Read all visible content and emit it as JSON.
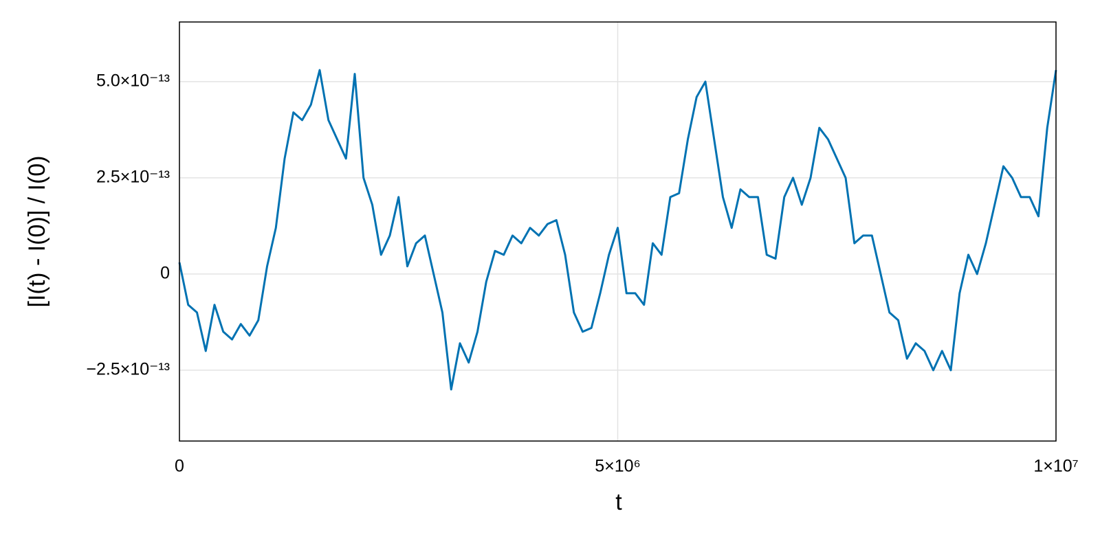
{
  "chart_data": {
    "type": "line",
    "xlabel": "t",
    "ylabel": "[I(t) - I(0)] / I(0)",
    "x": [
      0,
      100000,
      200000,
      300000,
      400000,
      500000,
      600000,
      700000,
      800000,
      900000,
      1000000,
      1100000,
      1200000,
      1300000,
      1400000,
      1500000,
      1600000,
      1700000,
      1800000,
      1900000,
      2000000,
      2100000,
      2200000,
      2300000,
      2400000,
      2500000,
      2600000,
      2700000,
      2800000,
      2900000,
      3000000,
      3100000,
      3200000,
      3300000,
      3400000,
      3500000,
      3600000,
      3700000,
      3800000,
      3900000,
      4000000,
      4100000,
      4200000,
      4300000,
      4400000,
      4500000,
      4600000,
      4700000,
      4800000,
      4900000,
      5000000,
      5100000,
      5200000,
      5300000,
      5400000,
      5500000,
      5600000,
      5700000,
      5800000,
      5900000,
      6000000,
      6100000,
      6200000,
      6300000,
      6400000,
      6500000,
      6600000,
      6700000,
      6800000,
      6900000,
      7000000,
      7100000,
      7200000,
      7300000,
      7400000,
      7500000,
      7600000,
      7700000,
      7800000,
      7900000,
      8000000,
      8100000,
      8200000,
      8300000,
      8400000,
      8500000,
      8600000,
      8700000,
      8800000,
      8900000,
      9000000,
      9100000,
      9200000,
      9300000,
      9400000,
      9500000,
      9600000,
      9700000,
      9800000,
      9900000,
      10000000
    ],
    "series": [
      {
        "name": "I",
        "color": "#0072b2",
        "values": [
          3e-14,
          -8e-14,
          -1e-13,
          -2e-13,
          -8e-14,
          -1.5e-13,
          -1.7e-13,
          -1.3e-13,
          -1.6e-13,
          -1.2e-13,
          2e-14,
          1.2e-13,
          3e-13,
          4.2e-13,
          4e-13,
          4.4e-13,
          5.3e-13,
          4e-13,
          3.5e-13,
          3e-13,
          5.2e-13,
          2.5e-13,
          1.8e-13,
          5e-14,
          1e-13,
          2e-13,
          2e-14,
          8e-14,
          1e-13,
          0,
          -1e-13,
          -3e-13,
          -1.8e-13,
          -2.3e-13,
          -1.5e-13,
          -2e-14,
          6e-14,
          5e-14,
          1e-13,
          8e-14,
          1.2e-13,
          1e-13,
          1.3e-13,
          1.4e-13,
          5e-14,
          -1e-13,
          -1.5e-13,
          -1.4e-13,
          -5e-14,
          5e-14,
          1.2e-13,
          -5e-14,
          -5e-14,
          -8e-14,
          8e-14,
          5e-14,
          2e-13,
          2.1e-13,
          3.5e-13,
          4.6e-13,
          5e-13,
          3.5e-13,
          2e-13,
          1.2e-13,
          2.2e-13,
          2e-13,
          2e-13,
          5e-14,
          4e-14,
          2e-13,
          2.5e-13,
          1.8e-13,
          2.5e-13,
          3.8e-13,
          3.5e-13,
          3e-13,
          2.5e-13,
          8e-14,
          1e-13,
          1e-13,
          0,
          -1e-13,
          -1.2e-13,
          -2.2e-13,
          -1.8e-13,
          -2e-13,
          -2.5e-13,
          -2e-13,
          -2.5e-13,
          -5e-14,
          5e-14,
          0,
          8e-14,
          1.8e-13,
          2.8e-13,
          2.5e-13,
          2e-13,
          2e-13,
          1.5e-13,
          3.8e-13,
          5.3e-13
        ]
      }
    ],
    "xlim": [
      0,
      10000000
    ],
    "ylim": [
      -4.34e-13,
      6.55e-13
    ],
    "xticks": [
      0,
      {
        "value": 5000000,
        "label": "5×10⁶"
      },
      {
        "value": 10000000,
        "label": "1×10⁷"
      }
    ],
    "yticks": [
      {
        "value": -2.5e-13,
        "label": "−2.5×10⁻¹³"
      },
      0,
      {
        "value": 2.5e-13,
        "label": "2.5×10⁻¹³"
      },
      {
        "value": 5e-13,
        "label": "5.0×10⁻¹³"
      }
    ],
    "grid": true
  }
}
